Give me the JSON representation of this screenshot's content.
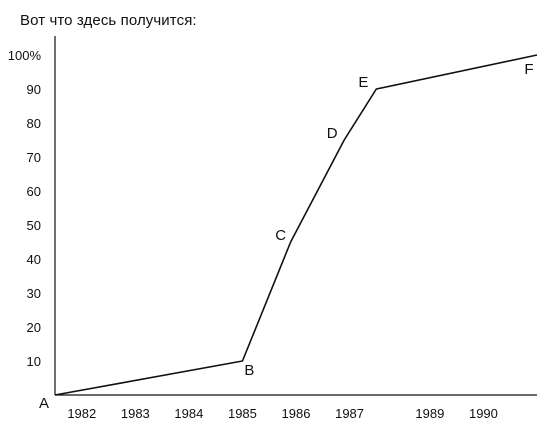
{
  "caption": "Вот что здесь получится:",
  "chart_data": {
    "type": "line",
    "xlim": [
      1981.5,
      1990.5
    ],
    "ylim": [
      0,
      105
    ],
    "grid": false,
    "x_tick_labels": [
      "1982",
      "1983",
      "1984",
      "1985",
      "1986",
      "1987",
      "1989",
      "1990"
    ],
    "x_tick_values": [
      1982,
      1983,
      1984,
      1985,
      1986,
      1987,
      1988.5,
      1989.5
    ],
    "y_tick_labels": [
      "10",
      "20",
      "30",
      "40",
      "50",
      "60",
      "70",
      "80",
      "90",
      "100%"
    ],
    "y_tick_values": [
      10,
      20,
      30,
      40,
      50,
      60,
      70,
      80,
      90,
      100
    ],
    "points": [
      {
        "label": "A",
        "x": 1981.5,
        "y": 0
      },
      {
        "label": "B",
        "x": 1985,
        "y": 10
      },
      {
        "label": "C",
        "x": 1985.9,
        "y": 45
      },
      {
        "label": "D",
        "x": 1986.9,
        "y": 75
      },
      {
        "label": "E",
        "x": 1987.5,
        "y": 90
      },
      {
        "label": "F",
        "x": 1990.5,
        "y": 100
      }
    ],
    "colors": {
      "line": "#111111",
      "axis": "#111111",
      "text": "#111111"
    }
  }
}
